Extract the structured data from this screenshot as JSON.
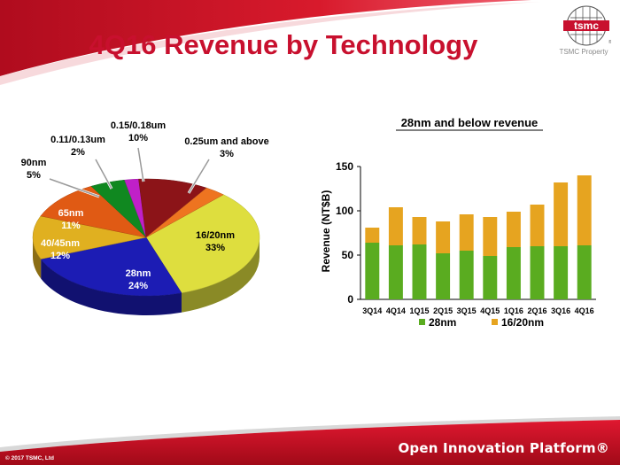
{
  "slide": {
    "title": "4Q16 Revenue by Technology",
    "logo_text": "tsmc",
    "logo_registered": "®",
    "property_text": "TSMC Property",
    "footer_tagline": "Open Innovation Platform®",
    "copyright": "© 2017 TSMC, Ltd",
    "colors": {
      "accent": "#c8102e",
      "footer_band": "#c8102e"
    }
  },
  "chart_data": [
    {
      "type": "pie",
      "slices": [
        {
          "name": "16/20nm",
          "value": 33,
          "label": "33%",
          "color": "#dede3e"
        },
        {
          "name": "28nm",
          "value": 24,
          "label": "24%",
          "color": "#1c1cb4"
        },
        {
          "name": "40/45nm",
          "value": 12,
          "label": "12%",
          "color": "#e0b020"
        },
        {
          "name": "65nm",
          "value": 11,
          "label": "11%",
          "color": "#e05a14"
        },
        {
          "name": "90nm",
          "value": 5,
          "label": "5%",
          "color": "#108820"
        },
        {
          "name": "0.11/0.13um",
          "value": 2,
          "label": "2%",
          "color": "#c020c8"
        },
        {
          "name": "0.15/0.18um",
          "value": 10,
          "label": "10%",
          "color": "#8c1418"
        },
        {
          "name": "0.25um and above",
          "value": 3,
          "label": "3%",
          "color": "#ee7420"
        }
      ]
    },
    {
      "type": "bar",
      "stacked": true,
      "title": "28nm and below revenue",
      "ylabel": "Revenue (NT$B)",
      "xlabel": "",
      "ylim": [
        0,
        150
      ],
      "yticks": [
        0,
        50,
        100,
        150
      ],
      "categories": [
        "3Q14",
        "4Q14",
        "1Q15",
        "2Q15",
        "3Q15",
        "4Q15",
        "1Q16",
        "2Q16",
        "3Q16",
        "4Q16"
      ],
      "series": [
        {
          "name": "28nm",
          "color": "#5aac20",
          "values": [
            64,
            61,
            62,
            52,
            55,
            49,
            59,
            60,
            60,
            61
          ]
        },
        {
          "name": "16/20nm",
          "color": "#e6a420",
          "values": [
            17,
            43,
            31,
            36,
            41,
            44,
            40,
            47,
            72,
            79
          ]
        }
      ],
      "legend_position": "bottom",
      "grid": false
    }
  ]
}
